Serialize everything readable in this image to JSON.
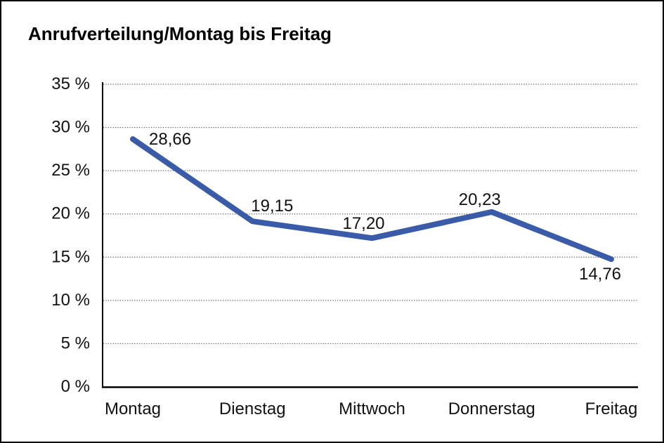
{
  "page": {
    "background_color": "#ffffff",
    "border_color": "#000000"
  },
  "chart_data": {
    "type": "line",
    "title": "Anrufverteilung/Montag bis Freitag",
    "categories": [
      "Montag",
      "Dienstag",
      "Mittwoch",
      "Donnerstag",
      "Freitag"
    ],
    "values": [
      28.66,
      19.15,
      17.2,
      20.23,
      14.76
    ],
    "value_labels": [
      "28,66",
      "19,15",
      "17,20",
      "20,23",
      "14,76"
    ],
    "y_tick_labels": [
      "35 %",
      "30 %",
      "25 %",
      "20 %",
      "15 %",
      "10 %",
      "5 %",
      "0 %"
    ],
    "xlabel": "",
    "ylabel": "",
    "ylim": [
      0,
      35
    ],
    "y_step": 5,
    "grid": "horizontal-dotted",
    "legend": "none",
    "line_color": "#3a5ba7",
    "grid_color": "#555555",
    "axis_color": "#000000",
    "text_color": "#111111"
  }
}
